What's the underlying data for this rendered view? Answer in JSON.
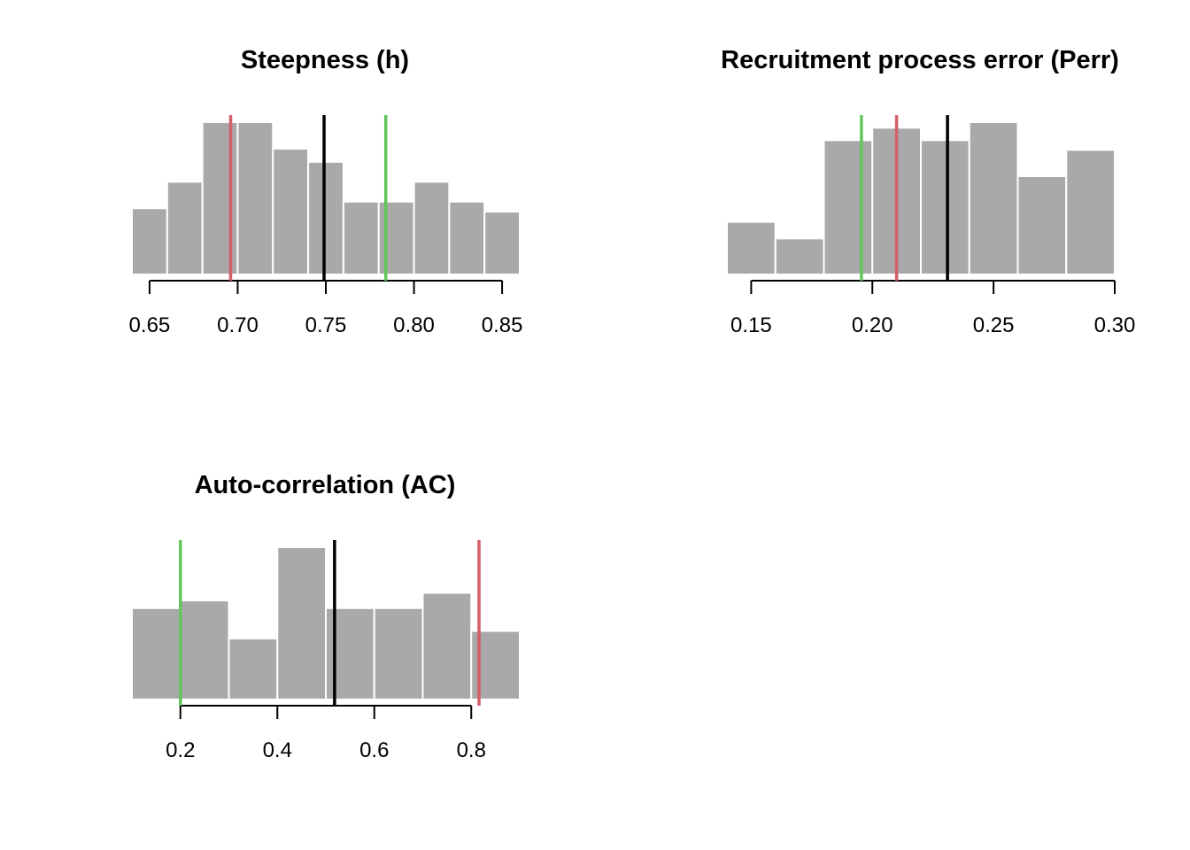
{
  "colors": {
    "bar": "#a9a9a9",
    "bar_border": "#ffffff",
    "axis": "#000000",
    "mean": "#000000",
    "lower": "#d55e6b",
    "upper": "#64c55a"
  },
  "chart_data": [
    {
      "type": "bar",
      "title": "Steepness (h)",
      "xlim": [
        0.64,
        0.86
      ],
      "breaks": [
        0.64,
        0.66,
        0.68,
        0.7,
        0.72,
        0.74,
        0.76,
        0.78,
        0.8,
        0.82,
        0.84,
        0.86
      ],
      "counts": [
        5,
        7,
        11.5,
        11.5,
        9.5,
        8.5,
        5.5,
        5.5,
        7,
        5.5,
        4.75
      ],
      "ticks": [
        0.65,
        0.7,
        0.75,
        0.8,
        0.85
      ],
      "tick_labels": [
        "0.65",
        "0.70",
        "0.75",
        "0.80",
        "0.85"
      ],
      "vlines": [
        {
          "x": 0.696,
          "color": "lower"
        },
        {
          "x": 0.749,
          "color": "mean"
        },
        {
          "x": 0.784,
          "color": "upper"
        }
      ]
    },
    {
      "type": "bar",
      "title": "Recruitment process error (Perr)",
      "xlim": [
        0.14,
        0.3
      ],
      "breaks": [
        0.14,
        0.16,
        0.18,
        0.2,
        0.22,
        0.24,
        0.26,
        0.28,
        0.3
      ],
      "counts": [
        3.8,
        2.6,
        9.7,
        10.6,
        9.7,
        11,
        7.1,
        9
      ],
      "ticks": [
        0.15,
        0.2,
        0.25,
        0.3
      ],
      "tick_labels": [
        "0.15",
        "0.20",
        "0.25",
        "0.30"
      ],
      "vlines": [
        {
          "x": 0.1955,
          "color": "upper"
        },
        {
          "x": 0.21,
          "color": "lower"
        },
        {
          "x": 0.231,
          "color": "mean"
        }
      ]
    },
    {
      "type": "bar",
      "title": "Auto-correlation (AC)",
      "xlim": [
        0.1,
        0.9
      ],
      "breaks": [
        0.1,
        0.2,
        0.3,
        0.4,
        0.5,
        0.6,
        0.7,
        0.8,
        0.9
      ],
      "counts": [
        6,
        6.5,
        4,
        10,
        6,
        6,
        7,
        4.5
      ],
      "ticks": [
        0.2,
        0.4,
        0.6,
        0.8
      ],
      "tick_labels": [
        "0.2",
        "0.4",
        "0.6",
        "0.8"
      ],
      "vlines": [
        {
          "x": 0.2,
          "color": "upper"
        },
        {
          "x": 0.518,
          "color": "mean"
        },
        {
          "x": 0.816,
          "color": "lower"
        }
      ]
    }
  ]
}
